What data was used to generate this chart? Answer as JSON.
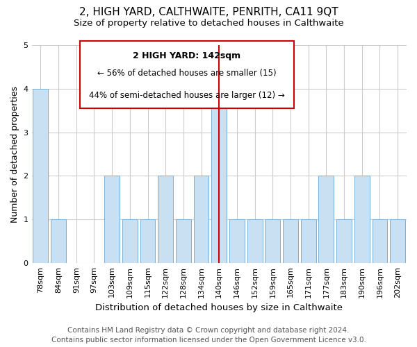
{
  "title": "2, HIGH YARD, CALTHWAITE, PENRITH, CA11 9QT",
  "subtitle": "Size of property relative to detached houses in Calthwaite",
  "xlabel": "Distribution of detached houses by size in Calthwaite",
  "ylabel": "Number of detached properties",
  "categories": [
    "78sqm",
    "84sqm",
    "91sqm",
    "97sqm",
    "103sqm",
    "109sqm",
    "115sqm",
    "122sqm",
    "128sqm",
    "134sqm",
    "140sqm",
    "146sqm",
    "152sqm",
    "159sqm",
    "165sqm",
    "171sqm",
    "177sqm",
    "183sqm",
    "190sqm",
    "196sqm",
    "202sqm"
  ],
  "values": [
    4,
    1,
    0,
    0,
    2,
    1,
    1,
    2,
    1,
    2,
    4,
    1,
    1,
    1,
    1,
    1,
    2,
    1,
    2,
    1,
    1
  ],
  "bar_color": "#c9dff2",
  "bar_edge_color": "#7bafd4",
  "vline_index": 10,
  "vline_color": "#cc0000",
  "ylim": [
    0,
    5
  ],
  "yticks": [
    0,
    1,
    2,
    3,
    4,
    5
  ],
  "annotation_title": "2 HIGH YARD: 142sqm",
  "annotation_line1": "← 56% of detached houses are smaller (15)",
  "annotation_line2": "44% of semi-detached houses are larger (12) →",
  "annotation_box_color": "#ffffff",
  "annotation_box_edgecolor": "#cc0000",
  "footer_line1": "Contains HM Land Registry data © Crown copyright and database right 2024.",
  "footer_line2": "Contains public sector information licensed under the Open Government Licence v3.0.",
  "bg_color": "#ffffff",
  "grid_color": "#cccccc",
  "title_fontsize": 11,
  "subtitle_fontsize": 9.5,
  "xlabel_fontsize": 9.5,
  "ylabel_fontsize": 9,
  "tick_fontsize": 8,
  "footer_fontsize": 7.5
}
